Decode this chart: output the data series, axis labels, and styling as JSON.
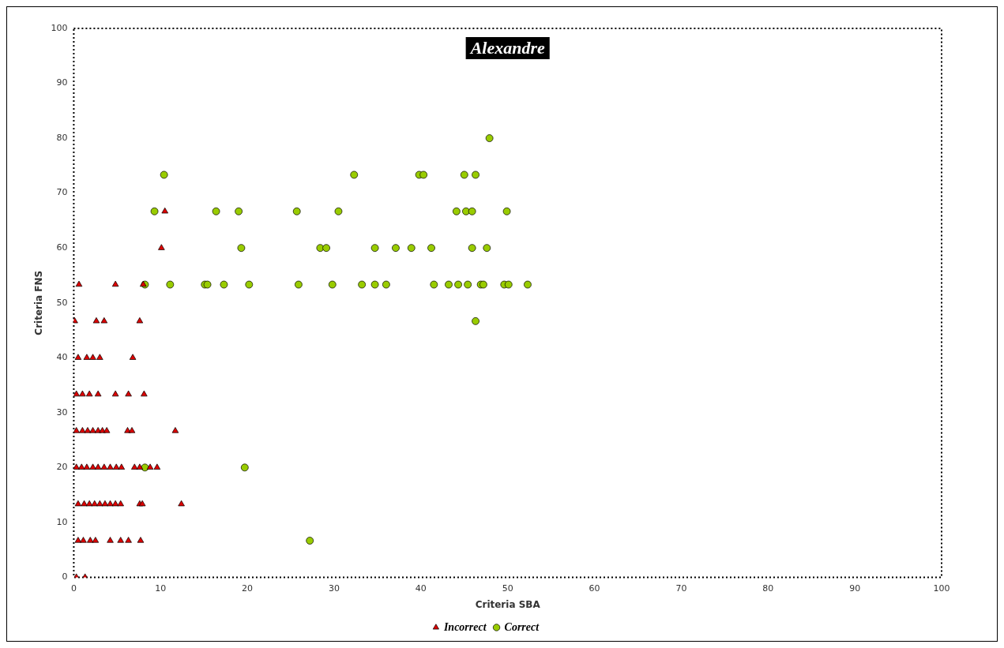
{
  "chart_data": {
    "type": "scatter",
    "title": "Alexandre",
    "xlabel": "Criteria SBA",
    "ylabel": "Criteria FNS",
    "xlim": [
      0,
      100
    ],
    "ylim": [
      0,
      100
    ],
    "xticks": [
      0,
      10,
      20,
      30,
      40,
      50,
      60,
      70,
      80,
      90,
      100
    ],
    "yticks": [
      0,
      10,
      20,
      30,
      40,
      50,
      60,
      70,
      80,
      90,
      100
    ],
    "grid": false,
    "legend": "bottom",
    "series": [
      {
        "name": "Incorrect",
        "color": "#dd0000",
        "marker": "triangle",
        "x": [
          10.5,
          10.1,
          0.6,
          4.8,
          8.0,
          0.1,
          2.6,
          3.5,
          7.6,
          0.5,
          1.5,
          2.2,
          3.0,
          6.8,
          0.3,
          1.0,
          1.8,
          2.8,
          4.8,
          6.3,
          8.1,
          0.3,
          1.0,
          1.6,
          2.2,
          2.8,
          3.3,
          3.8,
          6.2,
          6.7,
          11.7,
          0.3,
          0.9,
          1.5,
          2.2,
          2.8,
          3.5,
          4.2,
          4.9,
          5.5,
          7.0,
          7.6,
          8.8,
          9.6,
          0.5,
          1.2,
          1.8,
          2.4,
          3.0,
          3.6,
          4.2,
          4.8,
          5.4,
          7.6,
          7.9,
          12.4,
          0.5,
          1.1,
          1.9,
          2.5,
          4.2,
          5.4,
          6.3,
          7.7,
          0.3,
          1.3
        ],
        "values": [
          66.67,
          60,
          53.33,
          53.33,
          53.33,
          46.67,
          46.67,
          46.67,
          46.67,
          40,
          40,
          40,
          40,
          40,
          33.33,
          33.33,
          33.33,
          33.33,
          33.33,
          33.33,
          33.33,
          26.67,
          26.67,
          26.67,
          26.67,
          26.67,
          26.67,
          26.67,
          26.67,
          26.67,
          26.67,
          20,
          20,
          20,
          20,
          20,
          20,
          20,
          20,
          20,
          20,
          20,
          20,
          20,
          13.33,
          13.33,
          13.33,
          13.33,
          13.33,
          13.33,
          13.33,
          13.33,
          13.33,
          13.33,
          13.33,
          13.33,
          6.67,
          6.67,
          6.67,
          6.67,
          6.67,
          6.67,
          6.67,
          6.67,
          0,
          0
        ]
      },
      {
        "name": "Correct",
        "color": "#99cc00",
        "marker": "circle",
        "x": [
          47.9,
          10.4,
          32.3,
          39.8,
          40.3,
          45.0,
          46.3,
          9.3,
          16.4,
          19.0,
          25.7,
          30.5,
          44.1,
          45.2,
          45.9,
          49.9,
          19.3,
          28.4,
          29.1,
          34.7,
          37.1,
          38.9,
          41.2,
          45.9,
          47.6,
          8.2,
          11.1,
          15.1,
          15.4,
          17.3,
          20.2,
          25.9,
          29.8,
          33.2,
          34.7,
          36.0,
          41.5,
          43.2,
          44.3,
          45.4,
          46.9,
          47.2,
          49.6,
          50.1,
          52.3,
          46.3,
          8.2,
          19.7,
          27.2
        ],
        "values": [
          80,
          73.33,
          73.33,
          73.33,
          73.33,
          73.33,
          73.33,
          66.67,
          66.67,
          66.67,
          66.67,
          66.67,
          66.67,
          66.67,
          66.67,
          66.67,
          60,
          60,
          60,
          60,
          60,
          60,
          60,
          60,
          60,
          53.33,
          53.33,
          53.33,
          53.33,
          53.33,
          53.33,
          53.33,
          53.33,
          53.33,
          53.33,
          53.33,
          53.33,
          53.33,
          53.33,
          53.33,
          53.33,
          53.33,
          53.33,
          53.33,
          53.33,
          46.67,
          20,
          20,
          6.67
        ]
      }
    ]
  }
}
